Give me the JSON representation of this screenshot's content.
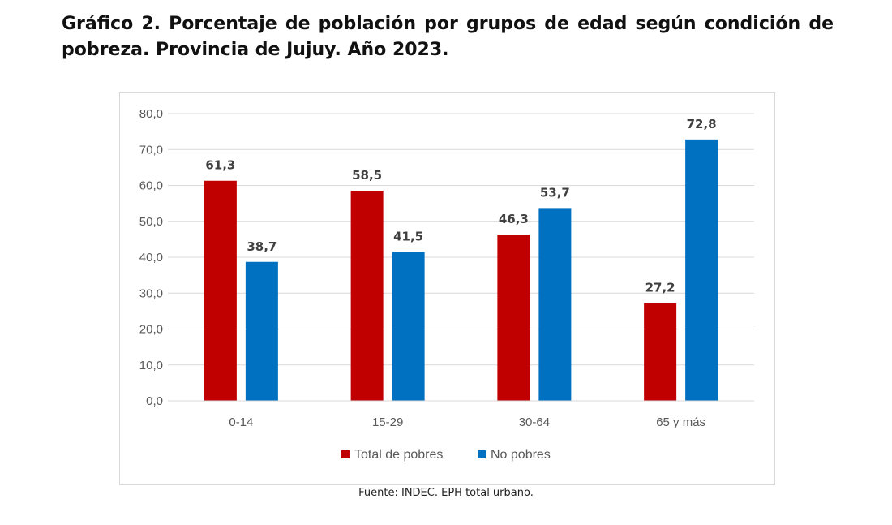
{
  "title": "Gráfico 2. Porcentaje de población por grupos de edad según condición de pobreza. Provincia de Jujuy. Año 2023.",
  "source": "Fuente: INDEC. EPH total urbano.",
  "chart_data": {
    "type": "bar",
    "categories": [
      "0-14",
      "15-29",
      "30-64",
      "65 y más"
    ],
    "series": [
      {
        "name": "Total de pobres",
        "values": [
          61.3,
          58.5,
          46.3,
          27.2
        ],
        "color": "#c00000"
      },
      {
        "name": "No pobres",
        "values": [
          38.7,
          41.5,
          53.7,
          72.8
        ],
        "color": "#0070c0"
      }
    ],
    "data_labels": [
      [
        "61,3",
        "58,5",
        "46,3",
        "27,2"
      ],
      [
        "38,7",
        "41,5",
        "53,7",
        "72,8"
      ]
    ],
    "yticks": [
      "0,0",
      "10,0",
      "20,0",
      "30,0",
      "40,0",
      "50,0",
      "60,0",
      "70,0",
      "80,0"
    ],
    "ylim": [
      0,
      80
    ],
    "grid": true,
    "legend_position": "bottom"
  }
}
